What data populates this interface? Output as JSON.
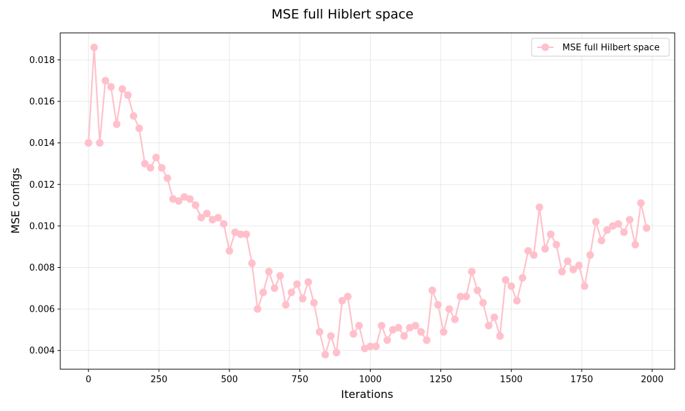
{
  "chart_data": {
    "type": "line",
    "title": "MSE full Hiblert space",
    "xlabel": "Iterations",
    "ylabel": "MSE configs",
    "xlim": [
      -100,
      2080
    ],
    "ylim": [
      0.0031,
      0.0193
    ],
    "xticks": [
      0,
      250,
      500,
      750,
      1000,
      1250,
      1500,
      1750,
      2000
    ],
    "xtick_labels": [
      "0",
      "250",
      "500",
      "750",
      "1000",
      "1250",
      "1500",
      "1750",
      "2000"
    ],
    "yticks": [
      0.004,
      0.006,
      0.008,
      0.01,
      0.012,
      0.014,
      0.016,
      0.018
    ],
    "ytick_labels": [
      "0.004",
      "0.006",
      "0.008",
      "0.010",
      "0.012",
      "0.014",
      "0.016",
      "0.018"
    ],
    "grid": true,
    "legend_position": "top-right",
    "color": "#ffc0cb",
    "series": [
      {
        "name": "MSE full Hilbert space",
        "x": [
          0,
          20,
          40,
          60,
          80,
          100,
          120,
          140,
          160,
          180,
          200,
          220,
          240,
          260,
          280,
          300,
          320,
          340,
          360,
          380,
          400,
          420,
          440,
          460,
          480,
          500,
          520,
          540,
          560,
          580,
          600,
          620,
          640,
          660,
          680,
          700,
          720,
          740,
          760,
          780,
          800,
          820,
          840,
          860,
          880,
          900,
          920,
          940,
          960,
          980,
          1000,
          1020,
          1040,
          1060,
          1080,
          1100,
          1120,
          1140,
          1160,
          1180,
          1200,
          1220,
          1240,
          1260,
          1280,
          1300,
          1320,
          1340,
          1360,
          1380,
          1400,
          1420,
          1440,
          1460,
          1480,
          1500,
          1520,
          1540,
          1560,
          1580,
          1600,
          1620,
          1640,
          1660,
          1680,
          1700,
          1720,
          1740,
          1760,
          1780,
          1800,
          1820,
          1840,
          1860,
          1880,
          1900,
          1920,
          1940,
          1960,
          1980
        ],
        "y": [
          0.014,
          0.0186,
          0.014,
          0.017,
          0.0167,
          0.0149,
          0.0166,
          0.0163,
          0.0153,
          0.0147,
          0.013,
          0.0128,
          0.0133,
          0.0128,
          0.0123,
          0.0113,
          0.0112,
          0.0114,
          0.0113,
          0.011,
          0.0104,
          0.0106,
          0.0103,
          0.0104,
          0.0101,
          0.0088,
          0.0097,
          0.0096,
          0.0096,
          0.0082,
          0.006,
          0.0068,
          0.0078,
          0.007,
          0.0076,
          0.0062,
          0.0068,
          0.0072,
          0.0065,
          0.0073,
          0.0063,
          0.0049,
          0.0038,
          0.0047,
          0.0039,
          0.0064,
          0.0066,
          0.0048,
          0.0052,
          0.0041,
          0.0042,
          0.0042,
          0.0052,
          0.0045,
          0.005,
          0.0051,
          0.0047,
          0.0051,
          0.0052,
          0.0049,
          0.0045,
          0.0069,
          0.0062,
          0.0049,
          0.006,
          0.0055,
          0.0066,
          0.0066,
          0.0078,
          0.0069,
          0.0063,
          0.0052,
          0.0056,
          0.0047,
          0.0074,
          0.0071,
          0.0064,
          0.0075,
          0.0088,
          0.0086,
          0.0109,
          0.0089,
          0.0096,
          0.0091,
          0.0078,
          0.0083,
          0.0079,
          0.0081,
          0.0071,
          0.0086,
          0.0102,
          0.0093,
          0.0098,
          0.01,
          0.0101,
          0.0097,
          0.0103,
          0.0091,
          0.0111,
          0.0099
        ]
      }
    ]
  }
}
